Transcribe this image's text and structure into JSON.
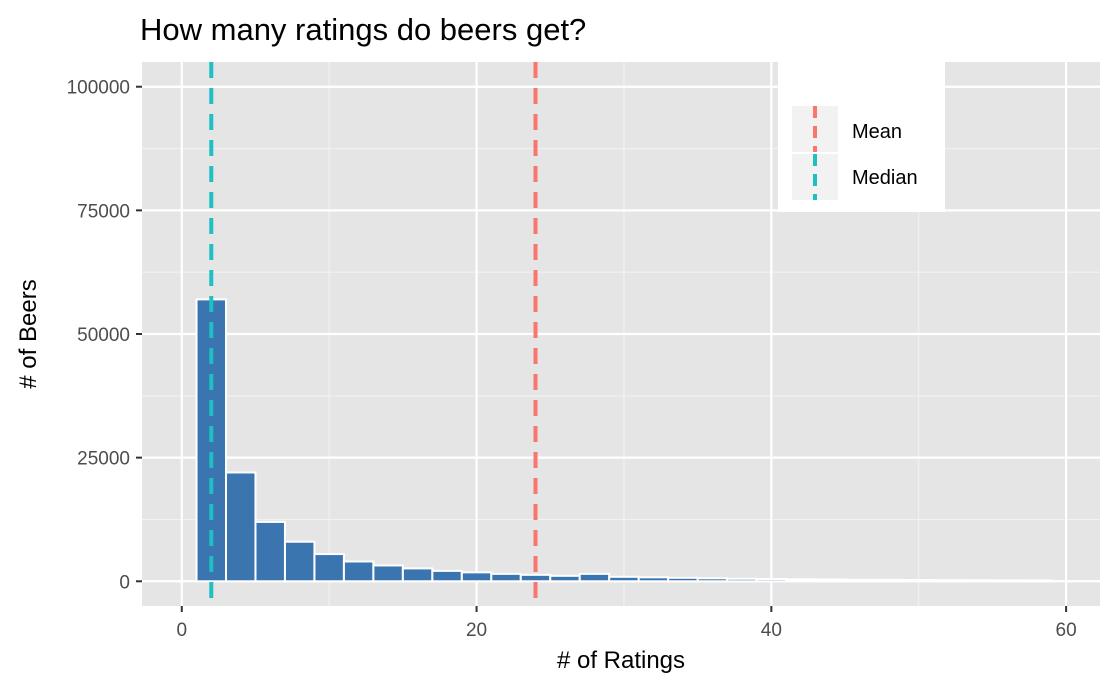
{
  "chart_data": {
    "type": "histogram",
    "title": "How many ratings do beers get?",
    "xlabel": "# of Ratings",
    "ylabel": "# of Beers",
    "xlim": [
      -2.7,
      62.3
    ],
    "ylim": [
      -5000,
      105000
    ],
    "x_ticks": [
      0,
      20,
      40,
      60
    ],
    "y_ticks": [
      0,
      25000,
      50000,
      75000,
      100000
    ],
    "grid": true,
    "bin_width": 2,
    "bin_start": 1,
    "values": [
      57000,
      22000,
      12000,
      8000,
      5500,
      4000,
      3200,
      2600,
      2100,
      1800,
      1500,
      1300,
      1100,
      1500,
      900,
      800,
      700,
      600,
      500,
      450,
      400,
      350,
      300,
      280,
      250,
      230,
      210,
      190,
      170
    ],
    "bar_color": "#3a75b0",
    "reference_lines": [
      {
        "name": "Mean",
        "x": 24,
        "color": "#f8766d"
      },
      {
        "name": "Median",
        "x": 2,
        "color": "#1fbfc4"
      }
    ],
    "legend_position": "top-right"
  }
}
